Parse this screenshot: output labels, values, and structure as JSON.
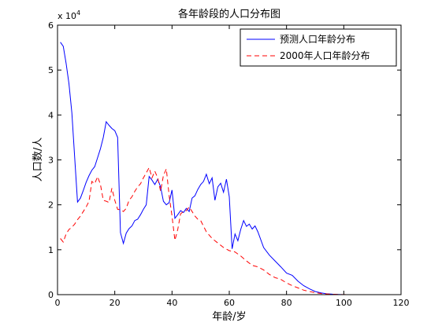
{
  "chart_data": {
    "type": "line",
    "title": "各年龄段的人口分布图",
    "xlabel": "年龄/岁",
    "ylabel": "人口数/人",
    "xlim": [
      0,
      120
    ],
    "ylim": [
      0,
      60000
    ],
    "x_ticks": [
      0,
      20,
      40,
      60,
      80,
      100,
      120
    ],
    "y_ticks": [
      0,
      10000,
      20000,
      30000,
      40000,
      50000,
      60000
    ],
    "y_tick_labels": [
      "0",
      "1",
      "2",
      "3",
      "4",
      "5",
      "6"
    ],
    "y_exponent_base": "x 10",
    "y_exponent_power": "4",
    "grid": false,
    "legend_position": "top-right",
    "series": [
      {
        "name": "预测人口年龄分布",
        "color": "#0000ff",
        "dash": "solid",
        "x": [
          1,
          2,
          3,
          4,
          5,
          6,
          7,
          8,
          9,
          10,
          11,
          12,
          13,
          14,
          15,
          16,
          17,
          18,
          19,
          20,
          21,
          22,
          23,
          24,
          25,
          26,
          27,
          28,
          29,
          30,
          31,
          32,
          33,
          34,
          35,
          36,
          37,
          38,
          39,
          40,
          41,
          42,
          43,
          44,
          45,
          46,
          47,
          48,
          49,
          50,
          51,
          52,
          53,
          54,
          55,
          56,
          57,
          58,
          59,
          60,
          61,
          62,
          63,
          64,
          65,
          66,
          67,
          68,
          69,
          70,
          72,
          74,
          76,
          78,
          80,
          82,
          84,
          86,
          88,
          90,
          92,
          94,
          96,
          98,
          100
        ],
        "y": [
          56200,
          55300,
          51500,
          47000,
          40500,
          30500,
          20600,
          21500,
          23200,
          25000,
          26500,
          27700,
          28500,
          30500,
          32500,
          35000,
          38500,
          37700,
          37000,
          36500,
          35000,
          13800,
          11400,
          13700,
          14700,
          15300,
          16500,
          16800,
          17800,
          19000,
          20000,
          26300,
          25500,
          24500,
          25700,
          24000,
          20800,
          20000,
          20500,
          23300,
          17000,
          17800,
          18700,
          18300,
          19200,
          18500,
          21500,
          22000,
          23400,
          24500,
          25200,
          26800,
          24700,
          26000,
          21000,
          24000,
          24800,
          22800,
          25700,
          21800,
          10200,
          13500,
          12000,
          14500,
          16500,
          15200,
          15700,
          14600,
          15300,
          14000,
          10500,
          8800,
          7500,
          6200,
          4800,
          4300,
          3000,
          2000,
          1300,
          700,
          400,
          200,
          100,
          50,
          0
        ]
      },
      {
        "name": "2000年人口年龄分布",
        "color": "#ff0000",
        "dash": "dashed",
        "x": [
          1,
          2,
          3,
          4,
          5,
          6,
          7,
          8,
          9,
          10,
          11,
          12,
          13,
          14,
          15,
          16,
          17,
          18,
          19,
          20,
          21,
          22,
          23,
          24,
          25,
          26,
          27,
          28,
          29,
          30,
          31,
          32,
          33,
          34,
          35,
          36,
          37,
          38,
          39,
          40,
          41,
          42,
          43,
          44,
          45,
          46,
          47,
          48,
          49,
          50,
          52,
          54,
          56,
          58,
          60,
          62,
          64,
          66,
          68,
          70,
          72,
          74,
          76,
          78,
          80,
          82,
          84,
          86,
          88,
          90,
          92,
          94,
          96,
          98,
          100,
          102
        ],
        "y": [
          12500,
          11700,
          13500,
          14500,
          15000,
          15700,
          16700,
          17500,
          18500,
          19500,
          20800,
          25200,
          24700,
          26300,
          24500,
          21000,
          20800,
          20500,
          23700,
          21000,
          19000,
          18900,
          18500,
          19200,
          21000,
          21800,
          23000,
          24000,
          24700,
          26000,
          27100,
          28300,
          26000,
          27500,
          26000,
          23000,
          26500,
          28000,
          22000,
          17500,
          12100,
          14500,
          18000,
          18500,
          18700,
          19500,
          18500,
          17500,
          16800,
          16500,
          14000,
          12500,
          11500,
          10500,
          9800,
          9500,
          8600,
          7500,
          6500,
          6200,
          5500,
          4500,
          3800,
          3400,
          2600,
          2000,
          1500,
          1000,
          700,
          450,
          250,
          150,
          80,
          40,
          20,
          0
        ]
      }
    ]
  }
}
